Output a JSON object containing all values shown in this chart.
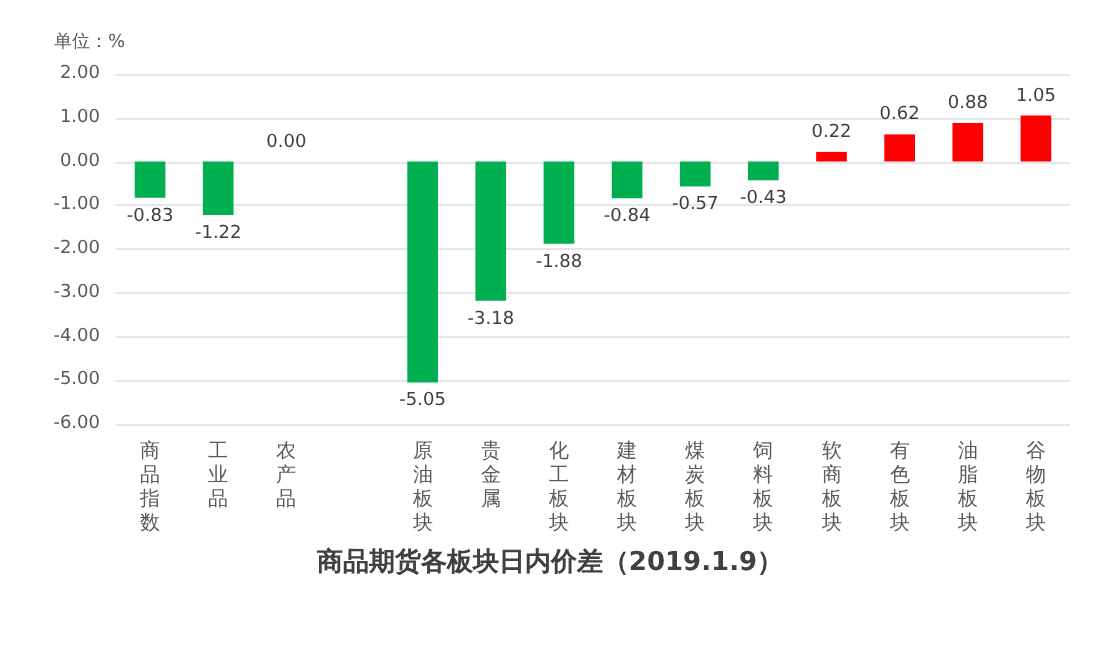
{
  "chart_data": {
    "type": "bar",
    "title": "商品期货各板块日内价差（2019.1.9）",
    "ylabel": "单位：%",
    "categories": [
      "商品指数",
      "工业品",
      "农产品",
      null,
      "原油板块",
      "贵金属",
      "化工板块",
      "建材板块",
      "煤炭板块",
      "饲料板块",
      "软商板块",
      "有色板块",
      "油脂板块",
      "谷物板块"
    ],
    "values": [
      -0.83,
      -1.22,
      0,
      null,
      -5.05,
      -3.18,
      -1.88,
      -0.84,
      -0.57,
      -0.43,
      0.22,
      0.62,
      0.88,
      1.05
    ],
    "value_labels": [
      "-0.83",
      "-1.22",
      "0.00",
      null,
      "-5.05",
      "-3.18",
      "-1.88",
      "-0.84",
      "-0.57",
      "-0.43",
      "0.22",
      "0.62",
      "0.88",
      "1.05"
    ],
    "colors": [
      "#00b050",
      "#00b050",
      "#00b050",
      null,
      "#00b050",
      "#00b050",
      "#00b050",
      "#00b050",
      "#00b050",
      "#00b050",
      "#ff0000",
      "#ff0000",
      "#ff0000",
      "#ff0000"
    ],
    "ylim": [
      -6,
      2
    ],
    "yticks": [
      {
        "value": -6,
        "label": "-6.00"
      },
      {
        "value": -5,
        "label": "-5.00"
      },
      {
        "value": -4,
        "label": "-4.00"
      },
      {
        "value": -3,
        "label": "-3.00"
      },
      {
        "value": -2,
        "label": "-2.00"
      },
      {
        "value": -1,
        "label": "-1.00"
      },
      {
        "value": 0,
        "label": "0.00"
      },
      {
        "value": 1,
        "label": "1.00"
      },
      {
        "value": 2,
        "label": "2.00"
      }
    ],
    "grid": "y"
  }
}
